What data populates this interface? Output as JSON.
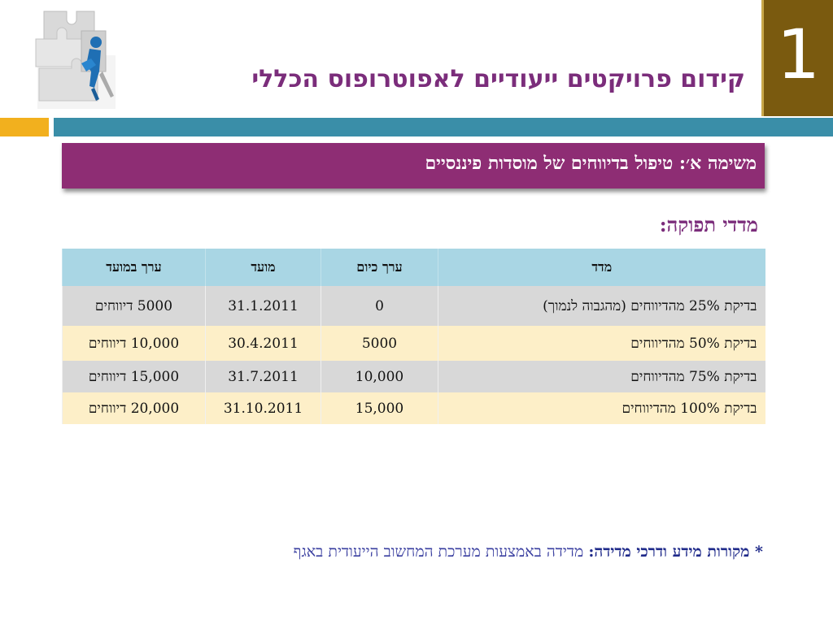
{
  "header": {
    "title": "קידום פרויקטים ייעודיים לאפוטרופוס הכללי",
    "page_number": "1"
  },
  "task": {
    "title": "משימה א׳: טיפול בדיווחים של מוסדות פיננסיים"
  },
  "section": {
    "title": "מדדי תפוקה:"
  },
  "table": {
    "headers": {
      "metric": "מדד",
      "current": "ערך כיום",
      "deadline": "מועד",
      "target": "ערך במועד"
    },
    "rows": [
      {
        "metric": "בדיקת 25% מהדיווחים (מהגבוה לנמוך)",
        "current": "0",
        "deadline": "31.1.2011",
        "target": "5000 דיווחים"
      },
      {
        "metric": "בדיקת 50% מהדיווחים",
        "current": "5000",
        "deadline": "30.4.2011",
        "target": "10,000 דיווחים"
      },
      {
        "metric": "בדיקת 75% מהדיווחים",
        "current": "10,000",
        "deadline": "31.7.2011",
        "target": "15,000 דיווחים"
      },
      {
        "metric": "בדיקת 100% מהדיווחים",
        "current": "15,000",
        "deadline": "31.10.2011",
        "target": "20,000 דיווחים"
      }
    ]
  },
  "footnote": {
    "label": "* מקורות מידע ודרכי מדידה:",
    "text": "מדידה באמצעות מערכת המחשוב הייעודית באגף"
  },
  "colors": {
    "title": "#7b2d7b",
    "banner": "#8e2d74",
    "accent_orange": "#f2b01e",
    "accent_teal": "#3a8ea8",
    "page_box": "#7a5a0f",
    "table_header": "#a9d6e4",
    "row_gray": "#d8d8d8",
    "row_cream": "#fdefc8"
  },
  "icons": {
    "logo": "puzzle-person-icon"
  }
}
